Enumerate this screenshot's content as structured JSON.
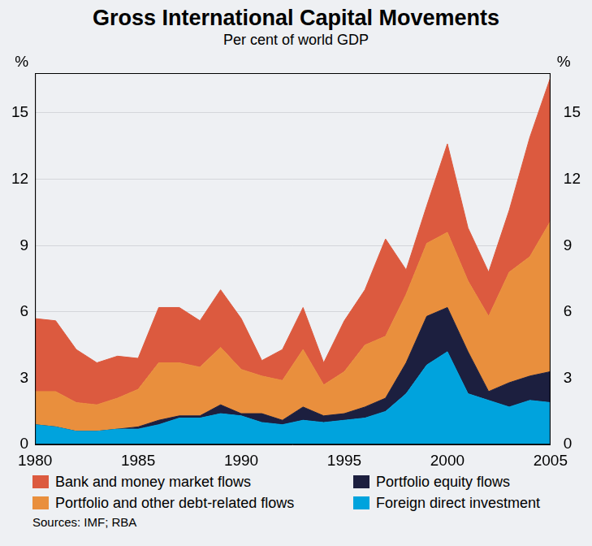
{
  "chart_data": {
    "type": "area",
    "title": "Gross International Capital Movements",
    "subtitle": "Per cent of world GDP",
    "ylabel": "%",
    "y2label": "%",
    "source": "Sources: IMF; RBA",
    "stacked": true,
    "grid": true,
    "legend": "bottom",
    "x": [
      1980,
      1981,
      1982,
      1983,
      1984,
      1985,
      1986,
      1987,
      1988,
      1989,
      1990,
      1991,
      1992,
      1993,
      1994,
      1995,
      1996,
      1997,
      1998,
      1999,
      2000,
      2001,
      2002,
      2003,
      2004,
      2005
    ],
    "xlim": [
      1980,
      2005
    ],
    "xticks": [
      1980,
      1985,
      1990,
      1995,
      2000,
      2005
    ],
    "ylim": [
      0,
      16.8
    ],
    "yticks": [
      0,
      3,
      6,
      9,
      12,
      15
    ],
    "y2lim": [
      0,
      16.8
    ],
    "y2ticks": [
      0,
      3,
      6,
      9,
      12,
      15
    ],
    "series": [
      {
        "name": "Foreign direct investment",
        "color": "#00a3dd",
        "values": [
          0.9,
          0.8,
          0.6,
          0.6,
          0.7,
          0.7,
          0.9,
          1.2,
          1.2,
          1.4,
          1.3,
          1.0,
          0.9,
          1.1,
          1.0,
          1.1,
          1.2,
          1.5,
          2.3,
          3.6,
          4.2,
          2.3,
          2.0,
          1.7,
          2.0,
          1.9
        ]
      },
      {
        "name": "Portfolio equity flows",
        "color": "#1c1f3f",
        "values": [
          0,
          0,
          0,
          0,
          0,
          0.1,
          0.2,
          0.1,
          0.1,
          0.4,
          0.1,
          0.4,
          0.2,
          0.6,
          0.3,
          0.3,
          0.5,
          0.6,
          1.4,
          2.2,
          2.0,
          1.9,
          0.4,
          1.1,
          1.1,
          1.4
        ]
      },
      {
        "name": "Portfolio and other debt-related flows",
        "color": "#e98f3d",
        "values": [
          1.5,
          1.6,
          1.3,
          1.2,
          1.4,
          1.7,
          2.6,
          2.4,
          2.2,
          2.6,
          2.0,
          1.7,
          1.8,
          2.6,
          1.4,
          1.9,
          2.8,
          2.8,
          3.1,
          3.3,
          3.4,
          3.2,
          3.4,
          5.0,
          5.4,
          6.8
        ]
      },
      {
        "name": "Bank and money market flows",
        "color": "#dc5a3f",
        "values": [
          3.3,
          3.2,
          2.4,
          1.9,
          1.9,
          1.4,
          2.5,
          2.5,
          2.1,
          2.6,
          2.3,
          0.7,
          1.4,
          1.9,
          1.0,
          2.3,
          2.5,
          4.4,
          1.1,
          1.7,
          4.0,
          2.4,
          2.0,
          2.8,
          5.4,
          6.5
        ]
      }
    ]
  }
}
